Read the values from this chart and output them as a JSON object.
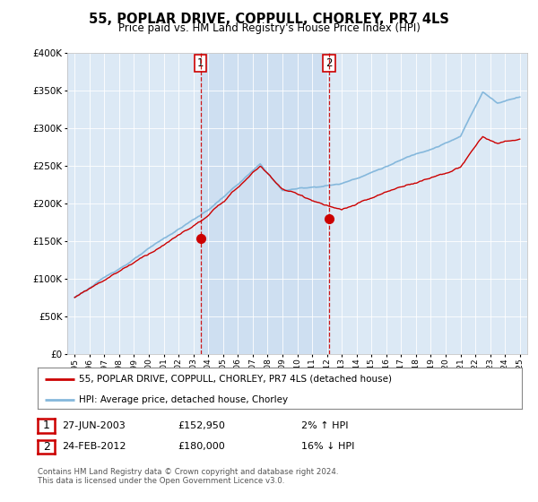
{
  "title": "55, POPLAR DRIVE, COPPULL, CHORLEY, PR7 4LS",
  "subtitle": "Price paid vs. HM Land Registry's House Price Index (HPI)",
  "legend_line1": "55, POPLAR DRIVE, COPPULL, CHORLEY, PR7 4LS (detached house)",
  "legend_line2": "HPI: Average price, detached house, Chorley",
  "transaction1_date": "27-JUN-2003",
  "transaction1_price": "£152,950",
  "transaction1_hpi": "2% ↑ HPI",
  "transaction2_date": "24-FEB-2012",
  "transaction2_price": "£180,000",
  "transaction2_hpi": "16% ↓ HPI",
  "footer": "Contains HM Land Registry data © Crown copyright and database right 2024.\nThis data is licensed under the Open Government Licence v3.0.",
  "ylim": [
    0,
    400000
  ],
  "yticks": [
    0,
    50000,
    100000,
    150000,
    200000,
    250000,
    300000,
    350000,
    400000
  ],
  "plot_bg": "#dce9f5",
  "shade_color": "#c5d9ef",
  "hpi_color": "#85b8dc",
  "price_color": "#cc0000",
  "vline_color": "#cc0000",
  "marker1_x": 2003.49,
  "marker1_y": 152950,
  "marker2_x": 2012.14,
  "marker2_y": 180000,
  "xlim_start": 1994.5,
  "xlim_end": 2025.5
}
